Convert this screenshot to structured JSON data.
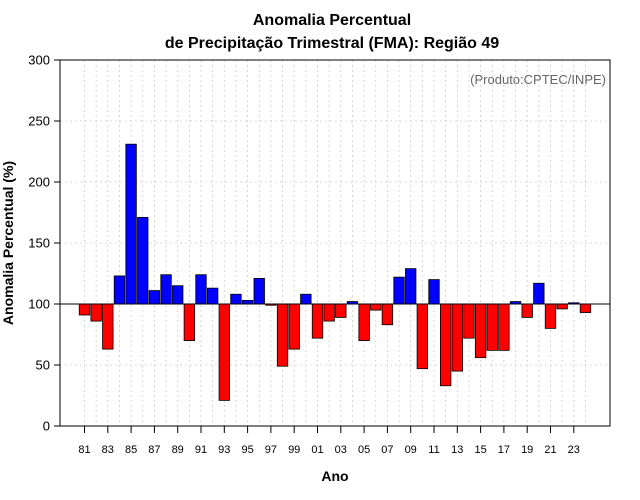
{
  "chart_data": {
    "type": "bar",
    "title": "Anomalia Percentual",
    "subtitle": "de Precipitação Trimestral (FMA): Região 49",
    "xlabel": "Ano",
    "ylabel": "Anomalia Percentual (%)",
    "note": "(Produto:CPTEC/INPE)",
    "ylim": [
      0,
      300
    ],
    "yticks": [
      "0",
      "50",
      "100",
      "150",
      "200",
      "250",
      "300"
    ],
    "baseline": 100,
    "colors": {
      "above": "#0000ff",
      "below": "#ff0000",
      "edge": "#000000",
      "grid": "#cccccc"
    },
    "categories": [
      "81",
      "82",
      "83",
      "84",
      "85",
      "86",
      "87",
      "88",
      "89",
      "90",
      "91",
      "92",
      "93",
      "94",
      "95",
      "96",
      "97",
      "98",
      "99",
      "00",
      "01",
      "02",
      "03",
      "04",
      "05",
      "06",
      "07",
      "08",
      "09",
      "10",
      "11",
      "12",
      "13",
      "14",
      "15",
      "16",
      "17",
      "18",
      "19",
      "20",
      "21",
      "22",
      "23",
      "24"
    ],
    "values": [
      91,
      86,
      63,
      123,
      231,
      171,
      111,
      124,
      115,
      70,
      124,
      113,
      21,
      108,
      103,
      121,
      99,
      49,
      63,
      108,
      72,
      86,
      89,
      102,
      70,
      95,
      83,
      122,
      129,
      47,
      120,
      33,
      45,
      72,
      56,
      62,
      62,
      102,
      89,
      117,
      80,
      96,
      101,
      93
    ],
    "xtick_labels": [
      "81",
      "83",
      "85",
      "87",
      "89",
      "91",
      "93",
      "95",
      "97",
      "99",
      "01",
      "03",
      "05",
      "07",
      "09",
      "11",
      "13",
      "15",
      "17",
      "19",
      "21",
      "23"
    ]
  }
}
